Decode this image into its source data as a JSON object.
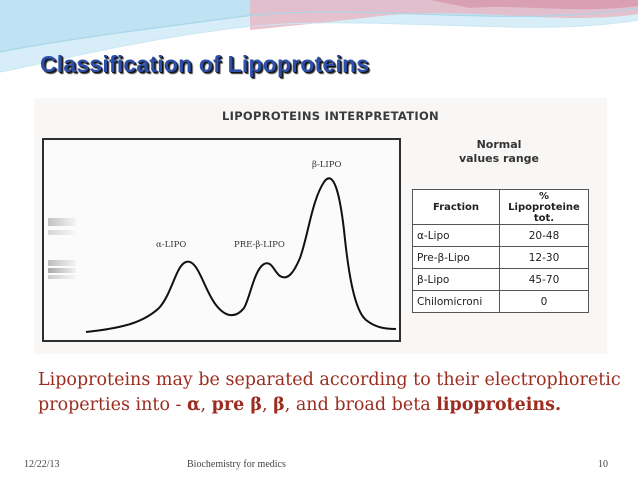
{
  "title": "Classification of Lipoproteins",
  "figure": {
    "heading": "LIPOPROTEINS INTERPRETATION",
    "peaks": {
      "alpha": "α-LIPO",
      "pre_beta": "PRE-β-LIPO",
      "beta": "β-LIPO"
    },
    "normal_heading": [
      "Normal",
      "values range"
    ],
    "table": {
      "col_fraction": "Fraction",
      "col_percent": [
        "%",
        "Lipoproteine tot."
      ],
      "rows": [
        {
          "fraction": "α-Lipo",
          "range": "20-48"
        },
        {
          "fraction": "Pre-β-Lipo",
          "range": "12-30"
        },
        {
          "fraction": "β-Lipo",
          "range": "45-70"
        },
        {
          "fraction": "Chilomicroni",
          "range": "0"
        }
      ]
    }
  },
  "body": {
    "part1": "Lipoproteins may be separated according to their electrophoretic properties into - ",
    "alpha": "α",
    "sep1": ", ",
    "pre_beta": "pre β",
    "sep2": ", ",
    "beta": "β",
    "part2": ", and broad beta ",
    "lipo": "lipoproteins."
  },
  "footer": {
    "date": "12/22/13",
    "center": "Biochemistry for medics",
    "page": "10"
  },
  "colors": {
    "title": "#2e4fa8",
    "body_text": "#9b2c1f",
    "wave_blue": "#bfe3f2",
    "wave_pink": "#e8b8c6"
  }
}
